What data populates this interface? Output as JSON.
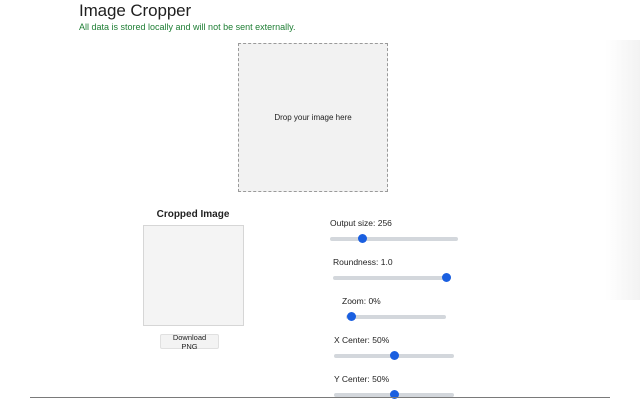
{
  "header": {
    "title": "Image Cropper",
    "privacy_note": "All data is stored locally and will not be sent externally."
  },
  "dropzone": {
    "label": "Drop your image here"
  },
  "preview": {
    "title": "Cropped Image",
    "download_label": "Download PNG"
  },
  "controls": {
    "output_size": {
      "label": "Output size: 256",
      "value_fraction": 0.23
    },
    "roundness": {
      "label": "Roundness: 1.0",
      "value_fraction": 1.0
    },
    "zoom": {
      "label": "Zoom: 0%",
      "value_fraction": 0.0
    },
    "x_center": {
      "label": "X Center: 50%",
      "value_fraction": 0.5
    },
    "y_center": {
      "label": "Y Center: 50%",
      "value_fraction": 0.5
    }
  },
  "colors": {
    "accent": "#1a5fe0",
    "privacy_text": "#1e7e34",
    "slider_track": "#d3d7dc"
  }
}
